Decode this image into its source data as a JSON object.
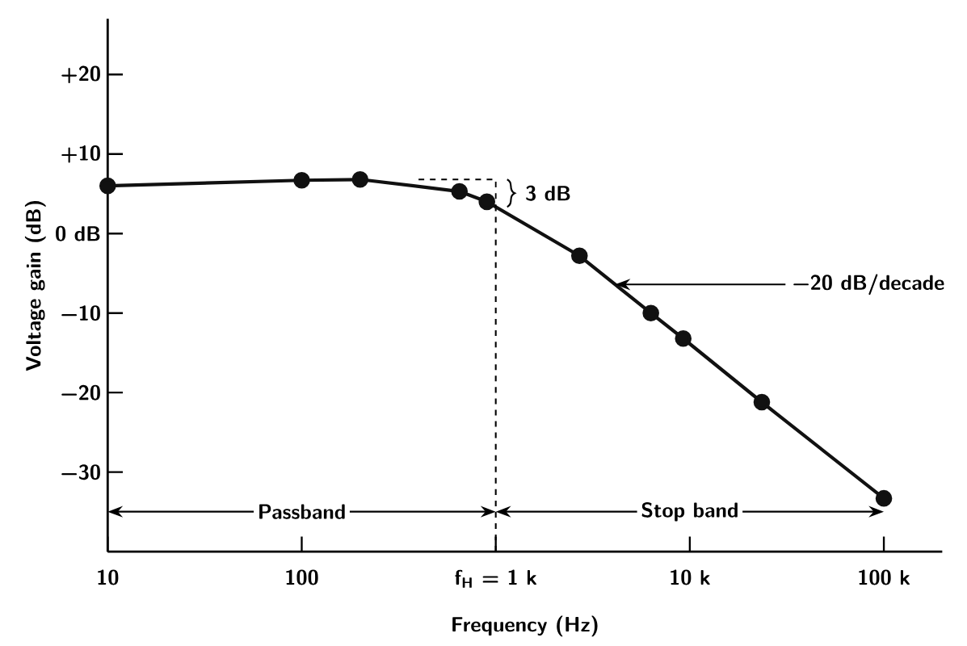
{
  "chart_data": {
    "type": "line",
    "xlabel": "Frequency (Hz)",
    "ylabel": "Voltage gain (dB)",
    "log": "x",
    "x": [
      10,
      100,
      200,
      650,
      900,
      2700,
      6300,
      9250,
      23500,
      100000
    ],
    "series": [
      {
        "color": "#111111",
        "values": [
          6.0,
          6.7,
          6.8,
          5.3,
          4.0,
          -2.8,
          -10.0,
          -13.2,
          -21.2,
          -33.3
        ]
      }
    ],
    "marker": "circle",
    "line_style": "solid",
    "grid": false,
    "xlim": [
      10,
      200000
    ],
    "ylim": [
      -40,
      27
    ],
    "xticks": [
      10,
      100,
      {
        "value": 1000,
        "label": "f$_{H}$ = 1 k"
      },
      {
        "value": 10000,
        "label": "10 k"
      },
      {
        "value": 100000,
        "label": "100 k"
      }
    ],
    "yticks": [
      {
        "value": 20,
        "label": "+20"
      },
      {
        "value": 10,
        "label": "+10"
      },
      {
        "value": 0,
        "label": "0 dB"
      },
      {
        "value": -10,
        "label": "−10"
      },
      {
        "value": -20,
        "label": "−20"
      },
      {
        "value": -30,
        "label": "−30"
      }
    ],
    "ref_lines": [
      {
        "axis": "x",
        "value": 1000,
        "line_style": "dashed"
      }
    ],
    "annotations": [
      "3 dB",
      "−20 dB/decade",
      "Passband",
      "Stop band"
    ]
  }
}
